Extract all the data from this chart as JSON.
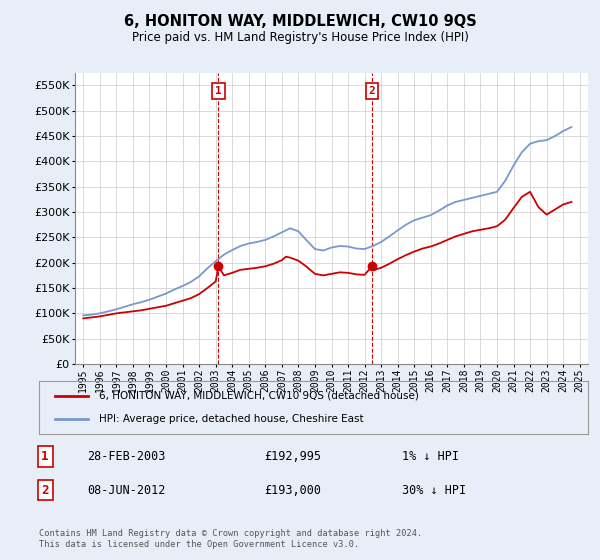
{
  "title": "6, HONITON WAY, MIDDLEWICH, CW10 9QS",
  "subtitle": "Price paid vs. HM Land Registry's House Price Index (HPI)",
  "red_line_label": "6, HONITON WAY, MIDDLEWICH, CW10 9QS (detached house)",
  "blue_line_label": "HPI: Average price, detached house, Cheshire East",
  "transactions": [
    {
      "label": "1",
      "date": "28-FEB-2003",
      "price": 192995,
      "hpi_diff": "1% ↓ HPI",
      "year": 2003.17
    },
    {
      "label": "2",
      "date": "08-JUN-2012",
      "price": 193000,
      "hpi_diff": "30% ↓ HPI",
      "year": 2012.44
    }
  ],
  "footer": "Contains HM Land Registry data © Crown copyright and database right 2024.\nThis data is licensed under the Open Government Licence v3.0.",
  "ylim": [
    0,
    575000
  ],
  "yticks": [
    0,
    50000,
    100000,
    150000,
    200000,
    250000,
    300000,
    350000,
    400000,
    450000,
    500000,
    550000
  ],
  "xlim": [
    1994.5,
    2025.5
  ],
  "background_color": "#e8eef8",
  "plot_bg_color": "#ffffff",
  "grid_color": "#cccccc",
  "red_color": "#cc0000",
  "blue_color": "#7799cc",
  "vline_color": "#cc0000",
  "marker_color": "#cc0000",
  "box_color": "#cc0000",
  "hpi_years": [
    1995,
    1995.5,
    1996,
    1996.5,
    1997,
    1997.5,
    1998,
    1998.5,
    1999,
    1999.5,
    2000,
    2000.5,
    2001,
    2001.5,
    2002,
    2002.5,
    2003,
    2003.5,
    2004,
    2004.5,
    2005,
    2005.5,
    2006,
    2006.5,
    2007,
    2007.5,
    2008,
    2008.5,
    2009,
    2009.5,
    2010,
    2010.5,
    2011,
    2011.5,
    2012,
    2012.5,
    2013,
    2013.5,
    2014,
    2014.5,
    2015,
    2015.5,
    2016,
    2016.5,
    2017,
    2017.5,
    2018,
    2018.5,
    2019,
    2019.5,
    2020,
    2020.5,
    2021,
    2021.5,
    2022,
    2022.5,
    2023,
    2023.5,
    2024,
    2024.5
  ],
  "hpi_values": [
    96000,
    97500,
    100000,
    104000,
    108000,
    113000,
    118000,
    122000,
    127000,
    133000,
    139000,
    147000,
    154000,
    162000,
    173000,
    189000,
    203000,
    216000,
    225000,
    233000,
    238000,
    241000,
    245000,
    252000,
    260000,
    268000,
    262000,
    244000,
    227000,
    224000,
    230000,
    233000,
    232000,
    228000,
    227000,
    233000,
    241000,
    252000,
    264000,
    275000,
    284000,
    289000,
    294000,
    303000,
    313000,
    320000,
    324000,
    328000,
    332000,
    336000,
    340000,
    362000,
    392000,
    418000,
    435000,
    440000,
    442000,
    450000,
    460000,
    468000
  ],
  "red_years": [
    1995,
    1995.5,
    1996,
    1996.5,
    1997,
    1997.5,
    1998,
    1998.5,
    1999,
    1999.5,
    2000,
    2000.5,
    2001,
    2001.5,
    2002,
    2002.5,
    2003,
    2003.17,
    2003.5,
    2004,
    2004.5,
    2005,
    2005.5,
    2006,
    2006.5,
    2007,
    2007.25,
    2007.5,
    2008,
    2008.5,
    2009,
    2009.5,
    2010,
    2010.5,
    2011,
    2011.5,
    2012,
    2012.44,
    2012.5,
    2013,
    2013.5,
    2014,
    2014.5,
    2015,
    2015.5,
    2016,
    2016.5,
    2017,
    2017.5,
    2018,
    2018.5,
    2019,
    2019.5,
    2020,
    2020.5,
    2021,
    2021.5,
    2022,
    2022.5,
    2023,
    2023.5,
    2024,
    2024.5
  ],
  "red_values": [
    90000,
    92000,
    94000,
    97000,
    100000,
    102000,
    104000,
    106000,
    109000,
    112000,
    115000,
    120000,
    125000,
    130000,
    138000,
    150000,
    163000,
    192995,
    175000,
    180000,
    186000,
    188000,
    190000,
    193000,
    198000,
    205000,
    212000,
    210000,
    204000,
    192000,
    178000,
    175000,
    178000,
    181000,
    180000,
    177000,
    176000,
    193000,
    185000,
    190000,
    198000,
    207000,
    215000,
    222000,
    228000,
    232000,
    238000,
    245000,
    252000,
    257000,
    262000,
    265000,
    268000,
    272000,
    285000,
    308000,
    330000,
    340000,
    310000,
    295000,
    305000,
    315000,
    320000
  ],
  "xtick_years": [
    1995,
    1996,
    1997,
    1998,
    1999,
    2000,
    2001,
    2002,
    2003,
    2004,
    2005,
    2006,
    2007,
    2008,
    2009,
    2010,
    2011,
    2012,
    2013,
    2014,
    2015,
    2016,
    2017,
    2018,
    2019,
    2020,
    2021,
    2022,
    2023,
    2024,
    2025
  ]
}
